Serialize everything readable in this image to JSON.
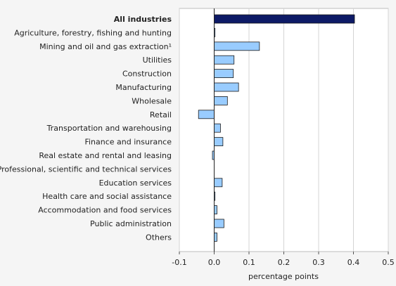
{
  "chart_data": {
    "type": "bar",
    "orientation": "horizontal",
    "categories": [
      "All industries",
      "Agriculture, forestry, fishing and hunting",
      "Mining and oil and gas extraction¹",
      "Utilities",
      "Construction",
      "Manufacturing",
      "Wholesale",
      "Retail",
      "Transportation and warehousing",
      "Finance and insurance",
      "Real estate and rental and leasing",
      "Professional, scientific and technical services",
      "Education services",
      "Health care and social assistance",
      "Accommodation and food services",
      "Public administration",
      "Others"
    ],
    "values": [
      0.403,
      0.002,
      0.13,
      0.057,
      0.055,
      0.07,
      0.038,
      -0.045,
      0.018,
      0.025,
      -0.005,
      0.0,
      0.023,
      0.001,
      0.008,
      0.028,
      0.008
    ],
    "highlight_category": "All industries",
    "xlabel": "percentage points",
    "xlim": [
      -0.1,
      0.5
    ],
    "xticks": [
      -0.1,
      0.0,
      0.1,
      0.2,
      0.3,
      0.4,
      0.5
    ],
    "xtick_labels": [
      "-0.1",
      "0.0",
      "0.1",
      "0.2",
      "0.3",
      "0.4",
      "0.5"
    ],
    "grid": true,
    "colors": {
      "highlight": "#0d1a66",
      "bar": "#99ccff",
      "bar_stroke": "#1a1a1a",
      "grid": "#d4d4d4",
      "plot_bg": "#ffffff"
    }
  }
}
